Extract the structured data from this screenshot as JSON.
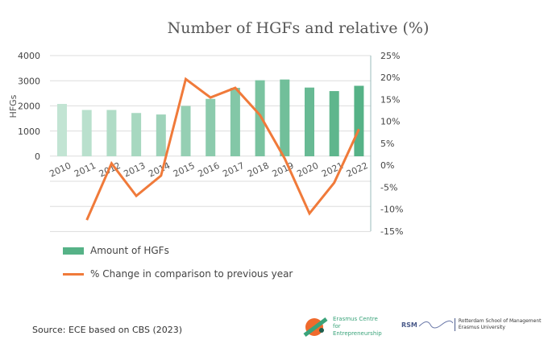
{
  "title": "Number of HGFs and relative (%)",
  "legend": {
    "bars": "Amount of HGFs",
    "line": "% Change in comparison to previous year"
  },
  "source": "Source: ECE based on CBS (2023)",
  "logos": {
    "ece": "Erasmus Centre for Entrepreneurship",
    "rsm": "RSM",
    "rsm_sub1": "Rotterdam School of Management",
    "rsm_sub2": "Erasmus University"
  },
  "colors": {
    "bar_light": "#c2e4d3",
    "bar_dark": "#56b287",
    "line": "#f07a3a",
    "grid": "#dddddd"
  },
  "chart_data": {
    "type": "bar+line",
    "title": "Number of HGFs and relative (%)",
    "ylabel": "HFGs",
    "categories": [
      "2010",
      "2011",
      "2012",
      "2013",
      "2014",
      "2015",
      "2016",
      "2017",
      "2018",
      "2019",
      "2020",
      "2021",
      "2022"
    ],
    "series": [
      {
        "name": "Amount of HGFs",
        "type": "bar",
        "axis": "left",
        "values": [
          2080,
          1840,
          1840,
          1720,
          1660,
          2000,
          2280,
          2720,
          3020,
          3050,
          2730,
          2590,
          2800
        ]
      },
      {
        "name": "% Change in comparison to previous year",
        "type": "line",
        "axis": "right",
        "values": [
          null,
          -12.5,
          0.4,
          -7,
          -2.4,
          19.6,
          15.4,
          17.6,
          11.4,
          1.5,
          -11,
          -4,
          8.2
        ]
      }
    ],
    "ylim_left": [
      0,
      4000
    ],
    "yticks_left": [
      "0",
      "1000",
      "2000",
      "3000",
      "4000"
    ],
    "ylim_right": [
      -15,
      25
    ],
    "yticks_right": [
      "25%",
      "20%",
      "15%",
      "10%",
      "5%",
      "0%",
      "-5%",
      "-10%",
      "-15%"
    ],
    "grid": true,
    "legend_position": "bottom-left"
  }
}
